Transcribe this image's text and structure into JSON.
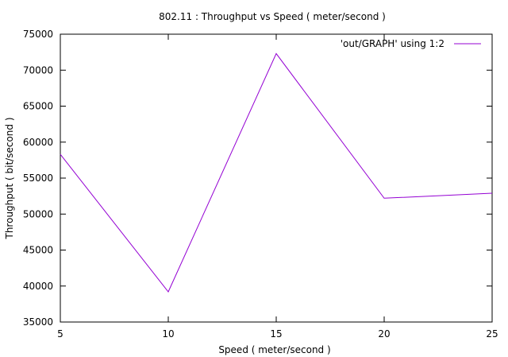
{
  "chart_data": {
    "type": "line",
    "title": "802.11 : Throughput vs Speed ( meter/second )",
    "xlabel": "Speed ( meter/second )",
    "ylabel": "Throughput ( bit/second )",
    "xlim": [
      5,
      25
    ],
    "ylim": [
      35000,
      75000
    ],
    "xticks": [
      5,
      10,
      15,
      20,
      25
    ],
    "yticks": [
      35000,
      40000,
      45000,
      50000,
      55000,
      60000,
      65000,
      70000,
      75000
    ],
    "grid": false,
    "legend_position": "top-right",
    "series": [
      {
        "name": "'out/GRAPH' using 1:2",
        "color": "#9400d3",
        "x": [
          5,
          10,
          15,
          20,
          25
        ],
        "y": [
          58300,
          39200,
          72300,
          52200,
          52900
        ]
      }
    ]
  }
}
